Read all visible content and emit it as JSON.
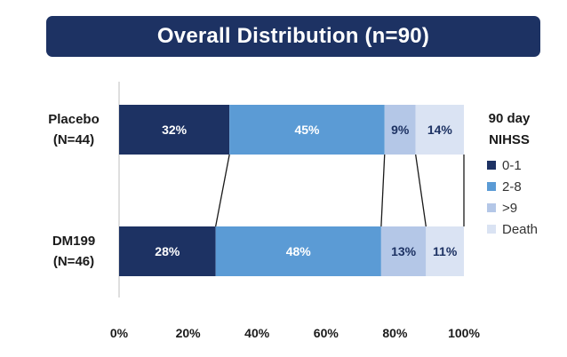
{
  "chart_data": {
    "type": "bar",
    "orientation": "horizontal",
    "stacked": true,
    "title": "Overall Distribution (n=90)",
    "categories": [
      {
        "line1": "Placebo",
        "line2": "(N=44)"
      },
      {
        "line1": "DM199",
        "line2": "(N=46)"
      }
    ],
    "series": [
      {
        "name": "0-1",
        "values": [
          32,
          28
        ],
        "labels": [
          "32%",
          "28%"
        ],
        "color": "#1d3263",
        "text_color": "#ffffff"
      },
      {
        "name": "2-8",
        "values": [
          45,
          48
        ],
        "labels": [
          "45%",
          "48%"
        ],
        "color": "#5b9bd5",
        "text_color": "#ffffff"
      },
      {
        "name": ">9",
        "values": [
          9,
          13
        ],
        "labels": [
          "9%",
          "13%"
        ],
        "color": "#b4c7e7",
        "text_color": "#1d3263"
      },
      {
        "name": "Death",
        "values": [
          14,
          11
        ],
        "labels": [
          "14%",
          "11%"
        ],
        "color": "#dae3f3",
        "text_color": "#1d3263"
      }
    ],
    "x_ticks": [
      "0%",
      "20%",
      "40%",
      "60%",
      "80%",
      "100%"
    ],
    "xlim": [
      0,
      100
    ],
    "legend": {
      "title_line1": "90 day",
      "title_line2": "NIHSS",
      "position": "right"
    },
    "grid": false
  }
}
